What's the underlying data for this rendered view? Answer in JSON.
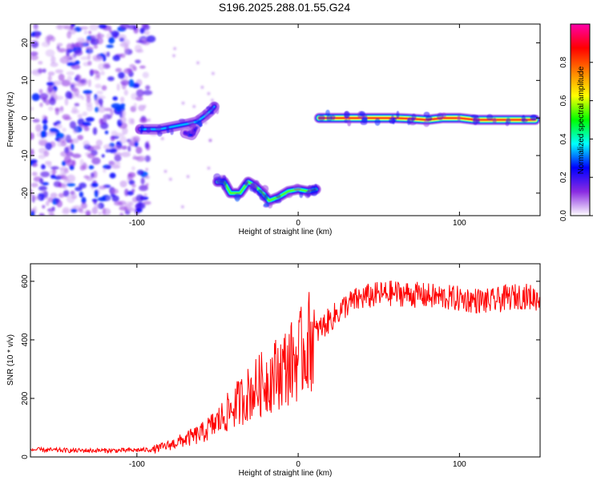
{
  "title": "S196.2025.288.01.55.G24",
  "chart_data": [
    {
      "type": "heatmap",
      "name": "spectrogram",
      "xlabel": "Height of straight line (km)",
      "ylabel": "Frequency (Hz)",
      "xlim": [
        -166,
        150
      ],
      "ylim": [
        -26,
        25
      ],
      "xticks": [
        -100,
        0,
        100
      ],
      "yticks": [
        -20,
        -10,
        0,
        10,
        20
      ],
      "colorbar": {
        "label": "Normalized spectral amplitude",
        "range": [
          0,
          1
        ],
        "ticks": [
          "0.0",
          "0.2",
          "0.4",
          "0.6",
          "0.8"
        ],
        "colors": [
          "#ffffff",
          "#8a2be2",
          "#0000ff",
          "#00ffff",
          "#00ff00",
          "#ffff00",
          "#ff8000",
          "#ff0000",
          "#ff00aa"
        ]
      },
      "noise_region": {
        "x": [
          -166,
          -93
        ],
        "y": [
          -26,
          25
        ]
      },
      "tracks": [
        {
          "points": [
            [
              -98,
              -3
            ],
            [
              -92,
              -3
            ],
            [
              -86,
              -3
            ],
            [
              -80,
              -2.5
            ],
            [
              -74,
              -2
            ],
            [
              -68,
              -1.5
            ],
            [
              -63,
              -1
            ],
            [
              -58,
              0.5
            ],
            [
              -54,
              2
            ],
            [
              -52,
              3
            ]
          ],
          "peak": 0.35
        },
        {
          "points": [
            [
              -70,
              -4
            ],
            [
              -66,
              -4.5
            ],
            [
              -64,
              -3
            ]
          ],
          "peak": 0.25
        },
        {
          "points": [
            [
              -50,
              -17
            ],
            [
              -46,
              -17
            ],
            [
              -42,
              -20
            ],
            [
              -36,
              -20
            ],
            [
              -31,
              -17
            ],
            [
              -27,
              -18
            ],
            [
              -22,
              -20
            ],
            [
              -18,
              -22
            ],
            [
              -12,
              -21
            ],
            [
              -6,
              -19.5
            ],
            [
              0,
              -19
            ],
            [
              6,
              -19.5
            ],
            [
              11,
              -19
            ]
          ],
          "peak": 0.55
        },
        {
          "points": [
            [
              13,
              0
            ],
            [
              20,
              0
            ],
            [
              30,
              0
            ],
            [
              40,
              0
            ],
            [
              50,
              0
            ],
            [
              60,
              0
            ],
            [
              70,
              -0.2
            ],
            [
              80,
              -0.5
            ],
            [
              90,
              0
            ],
            [
              100,
              0
            ],
            [
              110,
              -0.5
            ],
            [
              120,
              -0.5
            ],
            [
              130,
              -0.5
            ],
            [
              140,
              -0.5
            ],
            [
              147,
              -0.5
            ]
          ],
          "peak": 0.9
        }
      ]
    },
    {
      "type": "line",
      "name": "snr",
      "xlabel": "Height of straight line (km)",
      "ylabel": "SNR (10 * v/v)",
      "xlim": [
        -166,
        150
      ],
      "ylim": [
        0,
        660
      ],
      "xticks": [
        -100,
        0,
        100
      ],
      "yticks": [
        0,
        200,
        400,
        600
      ],
      "color": "#ff0000",
      "x": [
        -166,
        -140,
        -110,
        -90,
        -80,
        -70,
        -60,
        -50,
        -40,
        -30,
        -20,
        -10,
        0,
        10,
        20,
        30,
        40,
        50,
        60,
        70,
        80,
        90,
        100,
        110,
        120,
        130,
        140,
        150
      ],
      "values": [
        25,
        22,
        22,
        25,
        40,
        60,
        80,
        120,
        170,
        220,
        260,
        300,
        340,
        420,
        470,
        520,
        545,
        555,
        560,
        555,
        550,
        545,
        540,
        535,
        530,
        545,
        550,
        540
      ]
    }
  ]
}
